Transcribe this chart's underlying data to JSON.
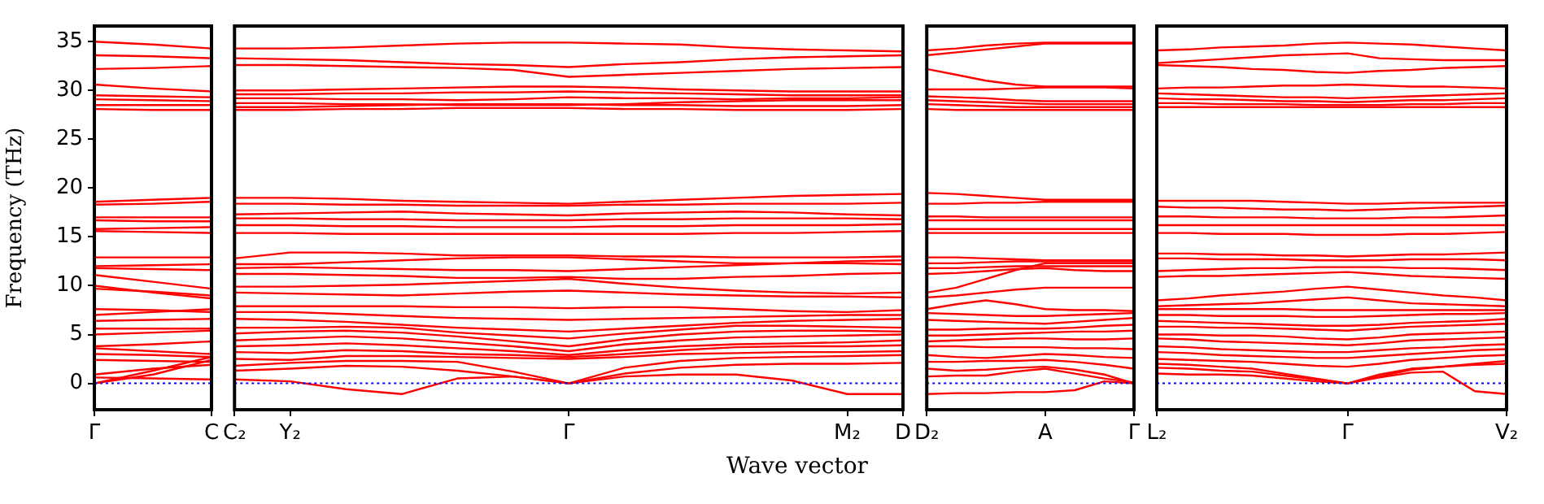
{
  "chart_data": [
    {
      "type": "line",
      "ylabel": "Frequency (THz)",
      "categories": [
        "Γ",
        null,
        "C"
      ],
      "ylim": [
        -2.7,
        36.6
      ],
      "yticks": [
        0,
        5,
        10,
        15,
        20,
        25,
        30,
        35
      ],
      "grid": false,
      "legend": false,
      "marker": "none",
      "line_style": "solid",
      "ref_lines": [
        {
          "axis": "y",
          "value": 0,
          "color": "#0000ff",
          "line_style": "dotted"
        }
      ],
      "series": [
        {
          "color": "#ff0000",
          "values": [
            35.0,
            34.7,
            34.3
          ]
        },
        {
          "color": "#ff0000",
          "values": [
            33.6,
            33.5,
            33.3
          ]
        },
        {
          "color": "#ff0000",
          "values": [
            32.2,
            32.3,
            32.5
          ]
        },
        {
          "color": "#ff0000",
          "values": [
            30.6,
            30.2,
            29.9
          ]
        },
        {
          "color": "#ff0000",
          "values": [
            29.5,
            29.4,
            29.3
          ]
        },
        {
          "color": "#ff0000",
          "values": [
            29.1,
            29.0,
            28.9
          ]
        },
        {
          "color": "#ff0000",
          "values": [
            28.5,
            28.5,
            28.5
          ]
        },
        {
          "color": "#ff0000",
          "values": [
            28.1,
            28.0,
            28.0
          ]
        },
        {
          "color": "#ff0000",
          "values": [
            18.6,
            18.8,
            19.0
          ]
        },
        {
          "color": "#ff0000",
          "values": [
            18.3,
            18.4,
            18.6
          ]
        },
        {
          "color": "#ff0000",
          "values": [
            17.0,
            17.0,
            17.0
          ]
        },
        {
          "color": "#ff0000",
          "values": [
            16.7,
            16.6,
            16.6
          ]
        },
        {
          "color": "#ff0000",
          "values": [
            15.8,
            15.9,
            16.0
          ]
        },
        {
          "color": "#ff0000",
          "values": [
            15.6,
            15.5,
            15.4
          ]
        },
        {
          "color": "#ff0000",
          "values": [
            12.9,
            12.9,
            12.9
          ]
        },
        {
          "color": "#ff0000",
          "values": [
            12.0,
            12.1,
            12.2
          ]
        },
        {
          "color": "#ff0000",
          "values": [
            11.8,
            11.7,
            11.6
          ]
        },
        {
          "color": "#ff0000",
          "values": [
            11.1,
            10.4,
            9.7
          ]
        },
        {
          "color": "#ff0000",
          "values": [
            10.0,
            9.3,
            8.7
          ]
        },
        {
          "color": "#ff0000",
          "values": [
            9.7,
            9.4,
            9.0
          ]
        },
        {
          "color": "#ff0000",
          "values": [
            7.6,
            7.5,
            7.3
          ]
        },
        {
          "color": "#ff0000",
          "values": [
            7.0,
            7.3,
            7.6
          ]
        },
        {
          "color": "#ff0000",
          "values": [
            6.4,
            6.5,
            6.6
          ]
        },
        {
          "color": "#ff0000",
          "values": [
            5.6,
            5.6,
            5.6
          ]
        },
        {
          "color": "#ff0000",
          "values": [
            5.0,
            5.2,
            5.4
          ]
        },
        {
          "color": "#ff0000",
          "values": [
            3.8,
            4.0,
            4.3
          ]
        },
        {
          "color": "#ff0000",
          "values": [
            3.6,
            3.3,
            3.0
          ]
        },
        {
          "color": "#ff0000",
          "values": [
            3.0,
            2.9,
            2.7
          ]
        },
        {
          "color": "#ff0000",
          "values": [
            2.4,
            2.3,
            2.2
          ]
        },
        {
          "color": "#ff0000",
          "values": [
            0.9,
            1.5,
            1.9
          ]
        },
        {
          "color": "#ff0000",
          "values": [
            0,
            1.3,
            2.7
          ]
        },
        {
          "color": "#ff0000",
          "values": [
            0,
            0.9,
            2.4
          ]
        },
        {
          "color": "#ff0000",
          "values": [
            0.6,
            0.5,
            0.4
          ]
        }
      ]
    },
    {
      "type": "line",
      "xlabel": "Wave vector",
      "categories": [
        "C₂",
        "Y₂",
        null,
        null,
        null,
        null,
        "Γ",
        null,
        null,
        null,
        null,
        "M₂",
        "D"
      ],
      "ylim": [
        -2.7,
        36.6
      ],
      "tick_labels": "x",
      "grid": false,
      "legend": false,
      "marker": "none",
      "line_style": "solid",
      "ref_lines": [
        {
          "axis": "y",
          "value": 0,
          "color": "#0000ff",
          "line_style": "dotted"
        }
      ],
      "series": [
        {
          "color": "#ff0000",
          "values": [
            34.3,
            34.3,
            34.4,
            34.6,
            34.8,
            34.9,
            34.9,
            34.8,
            34.7,
            34.4,
            34.2,
            34.1,
            34.0
          ]
        },
        {
          "color": "#ff0000",
          "values": [
            33.3,
            33.2,
            33.1,
            32.9,
            32.7,
            32.6,
            32.4,
            32.7,
            32.9,
            33.2,
            33.4,
            33.5,
            33.6
          ]
        },
        {
          "color": "#ff0000",
          "values": [
            32.6,
            32.6,
            32.5,
            32.4,
            32.3,
            32.1,
            31.4,
            31.6,
            31.8,
            32.0,
            32.2,
            32.3,
            32.4
          ]
        },
        {
          "color": "#ff0000",
          "values": [
            30.0,
            30.0,
            30.1,
            30.2,
            30.3,
            30.4,
            30.4,
            30.3,
            30.1,
            30.0,
            29.9,
            29.9,
            29.9
          ]
        },
        {
          "color": "#ff0000",
          "values": [
            29.6,
            29.6,
            29.7,
            29.7,
            29.8,
            29.8,
            29.9,
            29.8,
            29.7,
            29.6,
            29.5,
            29.5,
            29.5
          ]
        },
        {
          "color": "#ff0000",
          "values": [
            29.2,
            29.2,
            29.1,
            29.1,
            29.0,
            29.1,
            29.3,
            29.2,
            29.2,
            29.1,
            29.2,
            29.2,
            29.3
          ]
        },
        {
          "color": "#ff0000",
          "values": [
            28.7,
            28.7,
            28.6,
            28.6,
            28.5,
            28.5,
            28.5,
            28.6,
            28.8,
            28.9,
            29.0,
            29.0,
            29.0
          ]
        },
        {
          "color": "#ff0000",
          "values": [
            28.3,
            28.3,
            28.4,
            28.5,
            28.6,
            28.6,
            28.6,
            28.5,
            28.5,
            28.4,
            28.4,
            28.4,
            28.5
          ]
        },
        {
          "color": "#ff0000",
          "values": [
            28.0,
            28.0,
            28.1,
            28.1,
            28.2,
            28.2,
            28.2,
            28.1,
            28.1,
            28.0,
            28.0,
            28.0,
            28.1
          ]
        },
        {
          "color": "#ff0000",
          "values": [
            19.0,
            19.0,
            18.9,
            18.7,
            18.6,
            18.5,
            18.4,
            18.6,
            18.8,
            19.0,
            19.2,
            19.3,
            19.4
          ]
        },
        {
          "color": "#ff0000",
          "values": [
            18.4,
            18.4,
            18.3,
            18.3,
            18.2,
            18.2,
            18.2,
            18.3,
            18.3,
            18.4,
            18.4,
            18.4,
            18.5
          ]
        },
        {
          "color": "#ff0000",
          "values": [
            17.3,
            17.4,
            17.5,
            17.6,
            17.4,
            17.3,
            17.2,
            17.4,
            17.5,
            17.6,
            17.5,
            17.3,
            17.2
          ]
        },
        {
          "color": "#ff0000",
          "values": [
            16.9,
            16.9,
            16.8,
            16.8,
            16.7,
            16.7,
            16.7,
            16.8,
            16.8,
            16.9,
            16.9,
            16.9,
            16.8
          ]
        },
        {
          "color": "#ff0000",
          "values": [
            16.2,
            16.2,
            16.1,
            16.1,
            16.0,
            16.0,
            16.0,
            16.1,
            16.1,
            16.2,
            16.2,
            16.2,
            16.3
          ]
        },
        {
          "color": "#ff0000",
          "values": [
            15.4,
            15.4,
            15.3,
            15.3,
            15.3,
            15.3,
            15.3,
            15.3,
            15.3,
            15.4,
            15.4,
            15.5,
            15.6
          ]
        },
        {
          "color": "#ff0000",
          "values": [
            12.8,
            13.4,
            13.4,
            13.3,
            13.1,
            13.1,
            13.1,
            13.0,
            13.0,
            12.9,
            12.9,
            12.9,
            13.0
          ]
        },
        {
          "color": "#ff0000",
          "values": [
            12.2,
            12.2,
            12.4,
            12.6,
            12.8,
            12.9,
            12.9,
            12.7,
            12.5,
            12.3,
            12.3,
            12.3,
            12.2
          ]
        },
        {
          "color": "#ff0000",
          "values": [
            11.8,
            11.9,
            11.8,
            11.7,
            11.6,
            11.6,
            11.5,
            11.7,
            11.9,
            12.1,
            12.3,
            12.5,
            12.6
          ]
        },
        {
          "color": "#ff0000",
          "values": [
            11.2,
            11.2,
            11.1,
            11.0,
            10.8,
            10.8,
            10.9,
            10.7,
            10.7,
            10.9,
            11.0,
            11.2,
            11.3
          ]
        },
        {
          "color": "#ff0000",
          "values": [
            9.9,
            9.9,
            10.0,
            10.1,
            10.3,
            10.5,
            10.7,
            10.2,
            9.8,
            9.5,
            9.3,
            9.2,
            9.3
          ]
        },
        {
          "color": "#ff0000",
          "values": [
            9.3,
            9.2,
            9.1,
            9.0,
            9.2,
            9.4,
            9.5,
            9.3,
            9.1,
            9.0,
            8.9,
            8.9,
            8.8
          ]
        },
        {
          "color": "#ff0000",
          "values": [
            7.9,
            7.9,
            7.9,
            7.9,
            7.8,
            7.8,
            7.7,
            7.8,
            7.8,
            7.6,
            7.4,
            7.3,
            7.5
          ]
        },
        {
          "color": "#ff0000",
          "values": [
            7.3,
            7.3,
            7.1,
            6.9,
            6.7,
            6.6,
            6.5,
            6.6,
            6.7,
            6.8,
            6.9,
            7.0,
            7.0
          ]
        },
        {
          "color": "#ff0000",
          "values": [
            6.6,
            6.5,
            6.3,
            6.0,
            5.7,
            5.5,
            5.3,
            5.6,
            5.9,
            6.2,
            6.4,
            6.5,
            6.6
          ]
        },
        {
          "color": "#ff0000",
          "values": [
            5.7,
            5.7,
            5.8,
            5.7,
            5.2,
            4.9,
            4.6,
            5.1,
            5.5,
            5.9,
            5.9,
            5.8,
            5.7
          ]
        },
        {
          "color": "#ff0000",
          "values": [
            5.1,
            5.3,
            5.4,
            5.2,
            4.8,
            4.3,
            3.8,
            4.5,
            5.0,
            5.3,
            5.4,
            5.4,
            5.3
          ]
        },
        {
          "color": "#ff0000",
          "values": [
            4.4,
            4.6,
            4.8,
            4.6,
            4.2,
            3.8,
            3.3,
            4.0,
            4.4,
            4.7,
            4.8,
            4.9,
            5.0
          ]
        },
        {
          "color": "#ff0000",
          "values": [
            3.8,
            3.9,
            4.1,
            3.9,
            3.6,
            3.3,
            2.9,
            3.4,
            3.8,
            4.0,
            4.1,
            4.2,
            4.4
          ]
        },
        {
          "color": "#ff0000",
          "values": [
            3.2,
            3.1,
            3.4,
            3.3,
            3.0,
            2.9,
            2.7,
            3.0,
            3.4,
            3.7,
            3.8,
            3.8,
            3.9
          ]
        },
        {
          "color": "#ff0000",
          "values": [
            2.5,
            2.4,
            2.8,
            2.8,
            2.7,
            2.6,
            2.5,
            2.7,
            3.0,
            3.1,
            3.2,
            3.2,
            3.3
          ]
        },
        {
          "color": "#ff0000",
          "values": [
            1.8,
            2.1,
            2.3,
            2.3,
            2.2,
            1.2,
            0,
            1.6,
            2.3,
            2.6,
            2.7,
            2.8,
            2.9
          ]
        },
        {
          "color": "#ff0000",
          "values": [
            1.3,
            1.5,
            1.8,
            1.7,
            1.3,
            0.7,
            0,
            1.0,
            1.6,
            1.9,
            2.0,
            2.0,
            2.1
          ]
        },
        {
          "color": "#ff0000",
          "values": [
            0.4,
            0.2,
            -0.6,
            -1.1,
            0.5,
            0.7,
            0,
            0.7,
            0.9,
            0.9,
            0.3,
            -1.1,
            -1.1
          ]
        }
      ]
    },
    {
      "type": "line",
      "categories": [
        "D₂",
        null,
        null,
        null,
        "A",
        null,
        null,
        "Γ"
      ],
      "ylim": [
        -2.7,
        36.6
      ],
      "tick_labels": "x",
      "grid": false,
      "legend": false,
      "marker": "none",
      "line_style": "solid",
      "ref_lines": [
        {
          "axis": "y",
          "value": 0,
          "color": "#0000ff",
          "line_style": "dotted"
        }
      ],
      "series": [
        {
          "color": "#ff0000",
          "values": [
            34.1,
            34.3,
            34.6,
            34.8,
            34.9,
            34.9,
            34.9,
            34.9
          ]
        },
        {
          "color": "#ff0000",
          "values": [
            33.6,
            33.9,
            34.2,
            34.5,
            34.8,
            34.8,
            34.8,
            34.8
          ]
        },
        {
          "color": "#ff0000",
          "values": [
            32.2,
            31.6,
            31.0,
            30.6,
            30.4,
            30.4,
            30.4,
            30.4
          ]
        },
        {
          "color": "#ff0000",
          "values": [
            30.1,
            30.1,
            30.1,
            30.2,
            30.3,
            30.3,
            30.3,
            30.2
          ]
        },
        {
          "color": "#ff0000",
          "values": [
            29.4,
            29.3,
            29.2,
            29.0,
            28.9,
            28.9,
            28.9,
            28.9
          ]
        },
        {
          "color": "#ff0000",
          "values": [
            29.0,
            28.9,
            28.8,
            28.7,
            28.6,
            28.6,
            28.6,
            28.6
          ]
        },
        {
          "color": "#ff0000",
          "values": [
            28.6,
            28.5,
            28.4,
            28.3,
            28.3,
            28.3,
            28.3,
            28.3
          ]
        },
        {
          "color": "#ff0000",
          "values": [
            28.1,
            28.0,
            28.0,
            28.0,
            28.0,
            28.0,
            28.0,
            28.0
          ]
        },
        {
          "color": "#ff0000",
          "values": [
            19.5,
            19.4,
            19.2,
            19.0,
            18.8,
            18.8,
            18.8,
            18.8
          ]
        },
        {
          "color": "#ff0000",
          "values": [
            18.4,
            18.4,
            18.5,
            18.5,
            18.6,
            18.6,
            18.6,
            18.6
          ]
        },
        {
          "color": "#ff0000",
          "values": [
            17.1,
            17.1,
            17.0,
            17.0,
            17.0,
            17.0,
            17.0,
            17.0
          ]
        },
        {
          "color": "#ff0000",
          "values": [
            16.7,
            16.7,
            16.7,
            16.7,
            16.7,
            16.7,
            16.7,
            16.7
          ]
        },
        {
          "color": "#ff0000",
          "values": [
            15.8,
            15.8,
            15.8,
            15.8,
            15.8,
            15.8,
            15.8,
            15.8
          ]
        },
        {
          "color": "#ff0000",
          "values": [
            15.4,
            15.4,
            15.4,
            15.4,
            15.4,
            15.4,
            15.4,
            15.4
          ]
        },
        {
          "color": "#ff0000",
          "values": [
            12.9,
            12.9,
            12.8,
            12.7,
            12.6,
            12.6,
            12.6,
            12.6
          ]
        },
        {
          "color": "#ff0000",
          "values": [
            12.3,
            12.3,
            12.4,
            12.5,
            12.5,
            12.5,
            12.5,
            12.5
          ]
        },
        {
          "color": "#ff0000",
          "values": [
            11.8,
            11.8,
            11.9,
            12.0,
            12.0,
            12.0,
            12.0,
            12.0
          ]
        },
        {
          "color": "#ff0000",
          "values": [
            11.2,
            11.3,
            11.5,
            11.7,
            11.8,
            11.6,
            11.5,
            11.5
          ]
        },
        {
          "color": "#ff0000",
          "values": [
            9.3,
            9.8,
            10.7,
            11.6,
            12.3,
            12.3,
            12.3,
            12.3
          ]
        },
        {
          "color": "#ff0000",
          "values": [
            8.8,
            9.0,
            9.3,
            9.6,
            9.8,
            9.8,
            9.8,
            9.8
          ]
        },
        {
          "color": "#ff0000",
          "values": [
            7.6,
            8.1,
            8.5,
            8.1,
            7.6,
            7.5,
            7.5,
            7.4
          ]
        },
        {
          "color": "#ff0000",
          "values": [
            7.2,
            7.1,
            7.0,
            6.9,
            6.9,
            7.0,
            7.1,
            7.2
          ]
        },
        {
          "color": "#ff0000",
          "values": [
            6.5,
            6.4,
            6.3,
            6.2,
            6.1,
            6.3,
            6.5,
            6.7
          ]
        },
        {
          "color": "#ff0000",
          "values": [
            5.5,
            5.5,
            5.6,
            5.6,
            5.6,
            5.7,
            5.9,
            6.0
          ]
        },
        {
          "color": "#ff0000",
          "values": [
            4.9,
            4.9,
            5.0,
            5.1,
            5.2,
            5.3,
            5.3,
            5.4
          ]
        },
        {
          "color": "#ff0000",
          "values": [
            4.3,
            4.4,
            4.5,
            4.6,
            4.6,
            4.5,
            4.5,
            4.6
          ]
        },
        {
          "color": "#ff0000",
          "values": [
            3.8,
            3.8,
            3.7,
            3.7,
            3.7,
            3.6,
            3.6,
            3.5
          ]
        },
        {
          "color": "#ff0000",
          "values": [
            2.9,
            2.7,
            2.6,
            2.8,
            3.0,
            2.9,
            2.7,
            2.6
          ]
        },
        {
          "color": "#ff0000",
          "values": [
            2.2,
            2.2,
            2.3,
            2.3,
            2.4,
            2.2,
            1.9,
            1.5
          ]
        },
        {
          "color": "#ff0000",
          "values": [
            1.5,
            1.3,
            1.4,
            1.6,
            1.7,
            1.4,
            0.9,
            0
          ]
        },
        {
          "color": "#ff0000",
          "values": [
            0.7,
            0.8,
            0.8,
            1.2,
            1.5,
            1.0,
            0.5,
            0.1
          ]
        },
        {
          "color": "#ff0000",
          "values": [
            -1.1,
            -1.0,
            -1.0,
            -0.9,
            -0.9,
            -0.7,
            0.2,
            0
          ]
        }
      ]
    },
    {
      "type": "line",
      "categories": [
        "L₂",
        null,
        null,
        null,
        null,
        null,
        "Γ",
        null,
        null,
        null,
        null,
        "V₂"
      ],
      "ylim": [
        -2.7,
        36.6
      ],
      "tick_labels": "x",
      "grid": false,
      "legend": false,
      "marker": "none",
      "line_style": "solid",
      "ref_lines": [
        {
          "axis": "y",
          "value": 0,
          "color": "#0000ff",
          "line_style": "dotted"
        }
      ],
      "series": [
        {
          "color": "#ff0000",
          "values": [
            34.1,
            34.2,
            34.4,
            34.5,
            34.6,
            34.8,
            34.9,
            34.8,
            34.7,
            34.5,
            34.3,
            34.1
          ]
        },
        {
          "color": "#ff0000",
          "values": [
            32.8,
            33.0,
            33.2,
            33.4,
            33.6,
            33.7,
            33.8,
            33.3,
            33.2,
            33.1,
            33.1,
            33.1
          ]
        },
        {
          "color": "#ff0000",
          "values": [
            32.6,
            32.5,
            32.4,
            32.2,
            32.1,
            31.9,
            31.8,
            32.0,
            32.1,
            32.3,
            32.4,
            32.5
          ]
        },
        {
          "color": "#ff0000",
          "values": [
            30.2,
            30.3,
            30.3,
            30.4,
            30.5,
            30.5,
            30.6,
            30.5,
            30.4,
            30.4,
            30.3,
            30.2
          ]
        },
        {
          "color": "#ff0000",
          "values": [
            29.7,
            29.6,
            29.5,
            29.4,
            29.3,
            29.3,
            29.2,
            29.3,
            29.4,
            29.5,
            29.6,
            29.7
          ]
        },
        {
          "color": "#ff0000",
          "values": [
            29.2,
            29.1,
            29.1,
            29.0,
            28.9,
            28.9,
            28.8,
            28.9,
            29.0,
            29.0,
            29.1,
            29.2
          ]
        },
        {
          "color": "#ff0000",
          "values": [
            28.7,
            28.7,
            28.6,
            28.6,
            28.6,
            28.5,
            28.5,
            28.5,
            28.6,
            28.6,
            28.7,
            28.7
          ]
        },
        {
          "color": "#ff0000",
          "values": [
            28.3,
            28.3,
            28.3,
            28.3,
            28.3,
            28.3,
            28.3,
            28.3,
            28.3,
            28.3,
            28.3,
            28.3
          ]
        },
        {
          "color": "#ff0000",
          "values": [
            18.7,
            18.7,
            18.7,
            18.7,
            18.6,
            18.5,
            18.4,
            18.4,
            18.5,
            18.5,
            18.5,
            18.5
          ]
        },
        {
          "color": "#ff0000",
          "values": [
            18.1,
            18.0,
            18.0,
            17.9,
            17.8,
            17.8,
            17.7,
            17.8,
            17.9,
            18.0,
            18.1,
            18.2
          ]
        },
        {
          "color": "#ff0000",
          "values": [
            17.1,
            17.1,
            17.0,
            17.0,
            17.0,
            16.9,
            16.9,
            16.9,
            17.0,
            17.0,
            17.1,
            17.2
          ]
        },
        {
          "color": "#ff0000",
          "values": [
            16.2,
            16.2,
            16.2,
            16.2,
            16.2,
            16.2,
            16.2,
            16.2,
            16.2,
            16.2,
            16.2,
            16.2
          ]
        },
        {
          "color": "#ff0000",
          "values": [
            15.4,
            15.4,
            15.3,
            15.3,
            15.3,
            15.2,
            15.2,
            15.2,
            15.3,
            15.3,
            15.4,
            15.5
          ]
        },
        {
          "color": "#ff0000",
          "values": [
            13.3,
            13.3,
            13.2,
            13.2,
            13.1,
            13.1,
            13.0,
            13.1,
            13.2,
            13.2,
            13.3,
            13.4
          ]
        },
        {
          "color": "#ff0000",
          "values": [
            12.8,
            12.8,
            12.7,
            12.7,
            12.7,
            12.6,
            12.6,
            12.6,
            12.7,
            12.7,
            12.7,
            12.6
          ]
        },
        {
          "color": "#ff0000",
          "values": [
            11.5,
            11.6,
            11.7,
            11.8,
            11.8,
            11.9,
            11.9,
            11.9,
            11.8,
            11.8,
            11.7,
            11.6
          ]
        },
        {
          "color": "#ff0000",
          "values": [
            10.9,
            11.0,
            11.0,
            11.1,
            11.2,
            11.3,
            11.4,
            11.2,
            11.0,
            10.9,
            10.8,
            10.7
          ]
        },
        {
          "color": "#ff0000",
          "values": [
            8.5,
            8.7,
            9.0,
            9.2,
            9.4,
            9.7,
            9.9,
            9.6,
            9.3,
            9.0,
            8.8,
            8.5
          ]
        },
        {
          "color": "#ff0000",
          "values": [
            7.9,
            8.0,
            8.1,
            8.2,
            8.4,
            8.6,
            8.8,
            8.5,
            8.2,
            8.1,
            8.0,
            7.9
          ]
        },
        {
          "color": "#ff0000",
          "values": [
            7.6,
            7.6,
            7.6,
            7.6,
            7.6,
            7.5,
            7.5,
            7.5,
            7.5,
            7.5,
            7.5,
            7.5
          ]
        },
        {
          "color": "#ff0000",
          "values": [
            7.0,
            7.0,
            6.9,
            6.9,
            6.9,
            6.8,
            6.8,
            6.9,
            7.0,
            7.1,
            7.1,
            7.2
          ]
        },
        {
          "color": "#ff0000",
          "values": [
            6.4,
            6.3,
            6.2,
            6.1,
            6.0,
            5.9,
            5.9,
            6.0,
            6.2,
            6.3,
            6.4,
            6.6
          ]
        },
        {
          "color": "#ff0000",
          "values": [
            5.8,
            5.8,
            5.7,
            5.7,
            5.6,
            5.5,
            5.4,
            5.6,
            5.8,
            5.9,
            6.0,
            6.1
          ]
        },
        {
          "color": "#ff0000",
          "values": [
            5.0,
            5.0,
            4.9,
            4.9,
            4.8,
            4.6,
            4.5,
            4.7,
            5.0,
            5.1,
            5.2,
            5.3
          ]
        },
        {
          "color": "#ff0000",
          "values": [
            4.6,
            4.5,
            4.3,
            4.2,
            4.1,
            4.0,
            3.9,
            4.1,
            4.4,
            4.5,
            4.6,
            4.7
          ]
        },
        {
          "color": "#ff0000",
          "values": [
            3.8,
            3.7,
            3.5,
            3.4,
            3.3,
            3.2,
            3.2,
            3.4,
            3.6,
            3.7,
            3.9,
            4.0
          ]
        },
        {
          "color": "#ff0000",
          "values": [
            3.2,
            3.1,
            2.9,
            2.8,
            2.7,
            2.6,
            2.6,
            2.8,
            3.0,
            3.2,
            3.4,
            3.5
          ]
        },
        {
          "color": "#ff0000",
          "values": [
            2.5,
            2.4,
            2.3,
            2.2,
            2.0,
            1.8,
            1.7,
            2.0,
            2.4,
            2.6,
            2.8,
            2.9
          ]
        },
        {
          "color": "#ff0000",
          "values": [
            2.0,
            1.9,
            1.7,
            1.5,
            1.0,
            0.5,
            0,
            0.7,
            1.4,
            1.7,
            2.0,
            2.3
          ]
        },
        {
          "color": "#ff0000",
          "values": [
            1.6,
            1.5,
            1.3,
            1.2,
            0.8,
            0.4,
            0,
            0.9,
            1.5,
            1.7,
            1.9,
            2.0
          ]
        },
        {
          "color": "#ff0000",
          "values": [
            1.0,
            0.9,
            0.9,
            0.8,
            0.5,
            0.2,
            0,
            0.6,
            1.1,
            1.2,
            -0.8,
            -1.1
          ]
        }
      ]
    }
  ]
}
